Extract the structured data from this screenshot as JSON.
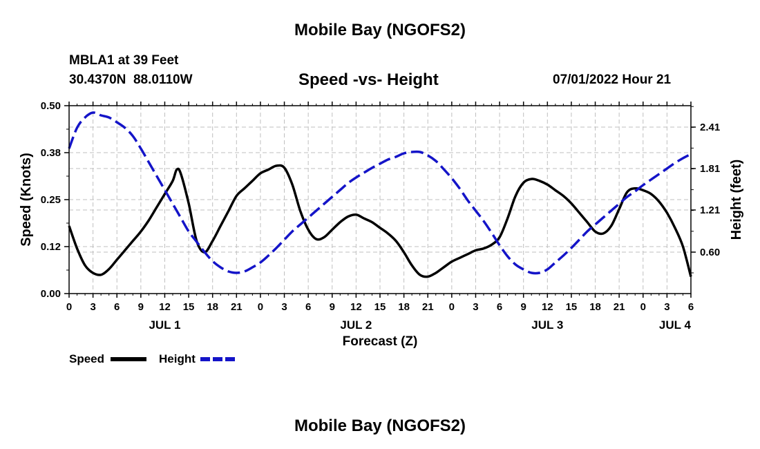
{
  "header": {
    "title": "Mobile Bay (NGOFS2)",
    "station": "MBLA1 at 39 Feet",
    "coords": "30.4370N  88.0110W",
    "chart_title": "Speed -vs- Height",
    "datetime": "07/01/2022 Hour 21"
  },
  "footer": {
    "title": "Mobile Bay (NGOFS2)"
  },
  "legend": {
    "speed_label": "Speed",
    "height_label": "Height"
  },
  "colors": {
    "speed": "#000000",
    "height": "#1414c8",
    "grid": "#bfbfbf"
  },
  "chart_data": {
    "type": "line",
    "title": "Speed -vs- Height",
    "xlabel": "Forecast (Z)",
    "ylabel": "Speed (Knots)",
    "y2label": "Height (feet)",
    "xlim": [
      0,
      78
    ],
    "ylim": [
      0,
      0.5
    ],
    "y2lim": [
      0.0,
      2.72
    ],
    "x_ticks": [
      0,
      3,
      6,
      9,
      12,
      15,
      18,
      21,
      24,
      27,
      30,
      33,
      36,
      39,
      42,
      45,
      48,
      51,
      54,
      57,
      60,
      63,
      66,
      69,
      72,
      75,
      78
    ],
    "x_tick_labels": [
      "0",
      "3",
      "6",
      "9",
      "12",
      "15",
      "18",
      "21",
      "0",
      "3",
      "6",
      "9",
      "12",
      "15",
      "18",
      "21",
      "0",
      "3",
      "6",
      "9",
      "12",
      "15",
      "18",
      "21",
      "0",
      "3",
      "6"
    ],
    "day_labels": [
      {
        "x": 12,
        "label": "JUL 1"
      },
      {
        "x": 36,
        "label": "JUL 2"
      },
      {
        "x": 60,
        "label": "JUL 3"
      },
      {
        "x": 76,
        "label": "JUL 4"
      }
    ],
    "y_ticks": [
      0,
      0.125,
      0.25,
      0.375,
      0.5
    ],
    "y_tick_labels": [
      "0.00",
      "0.12",
      "0.25",
      "0.38",
      "0.50"
    ],
    "y2_ticks": [
      0.6,
      1.21,
      1.81,
      2.41
    ],
    "y2_tick_labels": [
      "0.60",
      "1.21",
      "1.81",
      "2.41"
    ],
    "series": [
      {
        "name": "Speed",
        "axis": "left",
        "style": "solid",
        "x": [
          0,
          1,
          2,
          3,
          4,
          5,
          6,
          7,
          8,
          9,
          10,
          11,
          12,
          13,
          13.5,
          14,
          15,
          16,
          17,
          18,
          19,
          20,
          21,
          22,
          23,
          24,
          25,
          26,
          27,
          28,
          29,
          30,
          31,
          32,
          33,
          34,
          35,
          36,
          37,
          38,
          39,
          40,
          41,
          42,
          43,
          44,
          45,
          46,
          47,
          48,
          49,
          50,
          51,
          52,
          53,
          54,
          55,
          56,
          57,
          58,
          59,
          60,
          61,
          62,
          63,
          64,
          65,
          66,
          67,
          68,
          69,
          70,
          71,
          72,
          73,
          74,
          75,
          76,
          77,
          78
        ],
        "values": [
          0.18,
          0.12,
          0.075,
          0.055,
          0.05,
          0.065,
          0.09,
          0.115,
          0.14,
          0.165,
          0.195,
          0.23,
          0.265,
          0.3,
          0.33,
          0.32,
          0.24,
          0.14,
          0.11,
          0.14,
          0.18,
          0.22,
          0.26,
          0.28,
          0.3,
          0.32,
          0.33,
          0.34,
          0.335,
          0.29,
          0.22,
          0.17,
          0.145,
          0.15,
          0.17,
          0.19,
          0.205,
          0.21,
          0.2,
          0.19,
          0.175,
          0.16,
          0.14,
          0.11,
          0.075,
          0.05,
          0.045,
          0.055,
          0.07,
          0.085,
          0.095,
          0.105,
          0.115,
          0.12,
          0.13,
          0.15,
          0.2,
          0.26,
          0.295,
          0.305,
          0.3,
          0.29,
          0.275,
          0.26,
          0.24,
          0.215,
          0.19,
          0.165,
          0.16,
          0.18,
          0.225,
          0.27,
          0.28,
          0.275,
          0.265,
          0.245,
          0.215,
          0.175,
          0.125,
          0.045
        ]
      },
      {
        "name": "Height",
        "axis": "right",
        "style": "dashed",
        "x": [
          0,
          1,
          2,
          3,
          4,
          5,
          6,
          7,
          8,
          9,
          10,
          11,
          12,
          13,
          14,
          15,
          16,
          17,
          18,
          19,
          20,
          21,
          22,
          23,
          24,
          25,
          26,
          27,
          28,
          29,
          30,
          31,
          32,
          33,
          34,
          35,
          36,
          37,
          38,
          39,
          40,
          41,
          42,
          43,
          44,
          45,
          46,
          47,
          48,
          49,
          50,
          51,
          52,
          53,
          54,
          55,
          56,
          57,
          58,
          59,
          60,
          61,
          62,
          63,
          64,
          65,
          66,
          67,
          68,
          69,
          70,
          71,
          72,
          73,
          74,
          75,
          76,
          77,
          78
        ],
        "values": [
          2.1,
          2.4,
          2.55,
          2.62,
          2.58,
          2.55,
          2.48,
          2.4,
          2.28,
          2.1,
          1.9,
          1.7,
          1.5,
          1.3,
          1.1,
          0.9,
          0.75,
          0.6,
          0.47,
          0.38,
          0.32,
          0.3,
          0.32,
          0.38,
          0.45,
          0.55,
          0.66,
          0.78,
          0.9,
          1.0,
          1.1,
          1.2,
          1.3,
          1.4,
          1.5,
          1.6,
          1.68,
          1.75,
          1.82,
          1.88,
          1.94,
          1.98,
          2.03,
          2.05,
          2.05,
          2.0,
          1.92,
          1.8,
          1.67,
          1.52,
          1.35,
          1.2,
          1.05,
          0.88,
          0.7,
          0.54,
          0.42,
          0.35,
          0.3,
          0.3,
          0.35,
          0.45,
          0.55,
          0.66,
          0.78,
          0.9,
          1.0,
          1.1,
          1.2,
          1.3,
          1.4,
          1.48,
          1.57,
          1.65,
          1.73,
          1.81,
          1.89,
          1.96,
          2.02
        ]
      }
    ]
  }
}
